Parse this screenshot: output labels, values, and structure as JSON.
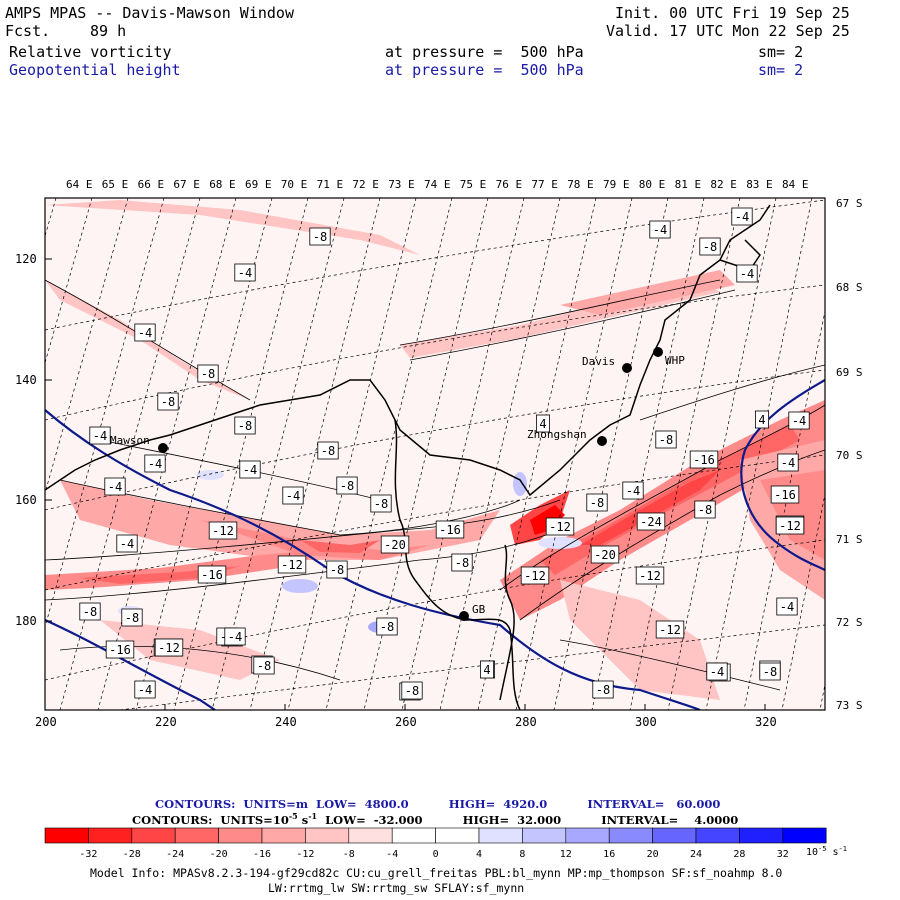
{
  "header": {
    "title": "AMPS MPAS -- Davis-Mawson Window",
    "fcst_label": "Fcst.",
    "fcst_value": "89 h",
    "init": "Init. 00 UTC Fri 19 Sep 25",
    "valid": "Valid. 17 UTC Mon 22 Sep 25",
    "field1": {
      "name": "Relative vorticity",
      "pressure": "at pressure =  500 hPa",
      "sm": "sm= 2"
    },
    "field2": {
      "name": "Geopotential height",
      "pressure": "at pressure =  500 hPa",
      "sm": "sm= 2"
    }
  },
  "map": {
    "lon_labels": [
      "64 E",
      "65 E",
      "66 E",
      "67 E",
      "68 E",
      "69 E",
      "70 E",
      "71 E",
      "72 E",
      "73 E",
      "74 E",
      "75 E",
      "76 E",
      "77 E",
      "78 E",
      "79 E",
      "80 E",
      "81 E",
      "82 E",
      "83 E",
      "84 E"
    ],
    "lat_labels": [
      "67 S",
      "68 S",
      "69 S",
      "70 S",
      "71 S",
      "72 S",
      "73 S"
    ],
    "y_ticks": [
      "120",
      "140",
      "160",
      "180"
    ],
    "x_ticks": [
      "200",
      "220",
      "240",
      "260",
      "280",
      "300",
      "320"
    ],
    "stations": [
      {
        "name": "Mawson"
      },
      {
        "name": "Davis"
      },
      {
        "name": "WHP"
      },
      {
        "name": "Zhongshan"
      },
      {
        "name": "GB"
      }
    ],
    "contour_labels": [
      "-8",
      "-4",
      "-4",
      "-4",
      "-4",
      "-8",
      "-4",
      "-8",
      "-8",
      "-4",
      "-4",
      "-8",
      "-4",
      "-8",
      "-8",
      "-4",
      "-8",
      "-4",
      "-4",
      "-4",
      "-8",
      "4",
      "-4",
      "4",
      "-4",
      "-8",
      "-8",
      "-16",
      "-12",
      "-20",
      "-8",
      "-16",
      "-8",
      "-12",
      "-12",
      "-12",
      "-24",
      "-8",
      "-16",
      "-4",
      "-12",
      "-12",
      "-20",
      "-12",
      "-16",
      "-16",
      "-4",
      "-8",
      "-8",
      "-8",
      "-12",
      "-4",
      "-8",
      "4",
      "-8",
      "-8",
      "-4",
      "-8",
      "-4",
      "-8",
      "-4",
      "-4",
      "4",
      "-4",
      "-4",
      "-12",
      "-12"
    ]
  },
  "legend": {
    "line1": "CONTOURS:  UNITS=m  LOW=  4800.0          HIGH=  4920.0          INTERVAL=   60.000",
    "line2": "CONTOURS:  UNITS=10",
    "line2_exp": "-5",
    "line2_rest": " s",
    "line2_exp2": "-1",
    "line2_tail": "  LOW=  -32.000          HIGH=  32.000          INTERVAL=    4.0000",
    "colorbar_labels": [
      "-32",
      "-28",
      "-24",
      "-20",
      "-16",
      "-12",
      "-8",
      "-4",
      "0",
      "4",
      "8",
      "12",
      "16",
      "20",
      "24",
      "28",
      "32"
    ],
    "units": "10",
    "units_exp": "-5",
    "units_s": " s",
    "units_exp2": "-1",
    "colors": [
      "#ff0000",
      "#ff2020",
      "#ff4545",
      "#ff6666",
      "#ff8a8a",
      "#ffa8a8",
      "#ffc4c4",
      "#ffe0e0",
      "#ffffff",
      "#ffffff",
      "#e0e0ff",
      "#c4c4ff",
      "#a8a8ff",
      "#8a8aff",
      "#6666ff",
      "#4545ff",
      "#2020ff",
      "#0000ff"
    ]
  },
  "model_info": {
    "line1": "Model Info: MPASv8.2.3-194-gf29cd82c CU:cu_grell_freitas PBL:bl_mynn MP:mp_thompson SF:sf_noahmp 8.0",
    "line2": "LW:rrtmg_lw SW:rrtmg_sw SFLAY:sf_mynn"
  }
}
